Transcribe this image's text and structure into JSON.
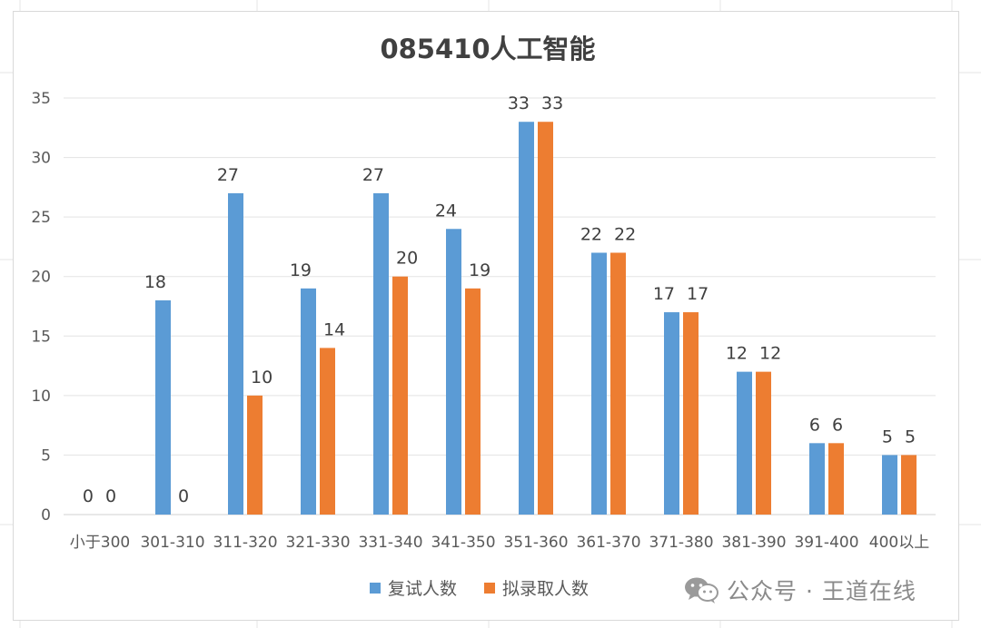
{
  "chart_data": {
    "type": "bar",
    "title": "085410人工智能",
    "categories": [
      "小于300",
      "301-310",
      "311-320",
      "321-330",
      "331-340",
      "341-350",
      "351-360",
      "361-370",
      "371-380",
      "381-390",
      "391-400",
      "400以上"
    ],
    "series": [
      {
        "name": "复试人数",
        "color": "#5b9bd5",
        "values": [
          0,
          18,
          27,
          19,
          27,
          24,
          33,
          22,
          17,
          12,
          6,
          5
        ]
      },
      {
        "name": "拟录取人数",
        "color": "#ed7d31",
        "values": [
          0,
          0,
          10,
          14,
          20,
          19,
          33,
          22,
          17,
          12,
          6,
          5
        ]
      }
    ],
    "xlabel": "",
    "ylabel": "",
    "ylim": [
      0,
      35
    ],
    "yticks": [
      0,
      5,
      10,
      15,
      20,
      25,
      30,
      35
    ],
    "grid": true,
    "legend_position": "bottom",
    "data_labels": true
  },
  "watermark": {
    "icon": "wechat-icon",
    "text": "公众号 · 王道在线"
  }
}
